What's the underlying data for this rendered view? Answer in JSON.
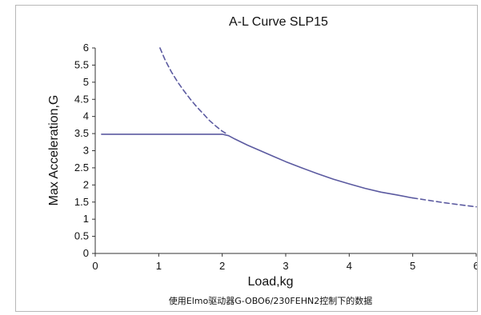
{
  "chart_data": {
    "type": "line",
    "title": "A-L Curve  SLP15",
    "xlabel": "Load,kg",
    "ylabel": "Max Acceleration,G",
    "caption": "使用Elmo驱动器G-OBO6/230FEHN2控制下的数据",
    "xlim": [
      0,
      6
    ],
    "ylim": [
      0,
      6
    ],
    "xticks": [
      "0",
      "1",
      "2",
      "3",
      "4",
      "5",
      "6"
    ],
    "yticks": [
      "0",
      "0.5",
      "1",
      "1.5",
      "2",
      "2.5",
      "3",
      "3.5",
      "4",
      "4.5",
      "5",
      "5.5",
      "6"
    ],
    "grid": false,
    "legend": "none",
    "color": "#5b5aa0",
    "series": [
      {
        "style": "solid",
        "x": [
          0.1,
          2.0,
          2.1,
          2.2,
          2.4,
          2.6,
          2.8,
          3.0,
          3.25,
          3.5,
          3.75,
          4.0,
          4.25,
          4.5,
          4.75,
          5.0
        ],
        "y": [
          3.48,
          3.48,
          3.44,
          3.34,
          3.16,
          3.0,
          2.84,
          2.68,
          2.5,
          2.33,
          2.17,
          2.03,
          1.9,
          1.79,
          1.71,
          1.62
        ]
      },
      {
        "style": "dashed",
        "x": [
          1.02,
          1.1,
          1.2,
          1.3,
          1.4,
          1.5,
          1.6,
          1.7,
          1.8,
          1.9,
          2.0,
          2.08
        ],
        "y": [
          6.0,
          5.65,
          5.3,
          5.0,
          4.74,
          4.5,
          4.28,
          4.08,
          3.88,
          3.72,
          3.57,
          3.48
        ]
      },
      {
        "style": "dashed",
        "x": [
          5.0,
          5.25,
          5.5,
          5.75,
          6.0
        ],
        "y": [
          1.62,
          1.55,
          1.48,
          1.42,
          1.36
        ]
      }
    ]
  }
}
